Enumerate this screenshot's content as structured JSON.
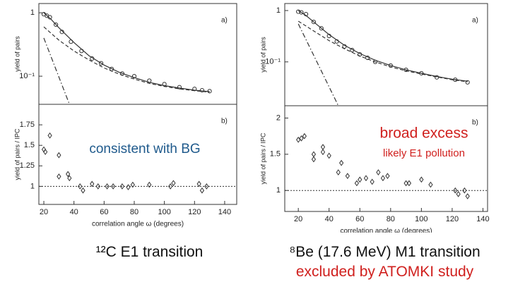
{
  "chart_data": [
    {
      "type": "scatter",
      "panel": "a)",
      "ylabel": "yield of pairs",
      "log": true,
      "xlim": [
        16.7,
        148
      ],
      "ylim": [
        0.036,
        1.4
      ],
      "yticks": [
        1,
        {
          "value": 0.1,
          "label": "10⁻¹"
        }
      ],
      "series": [
        {
          "style": "markers",
          "marker": "circle",
          "color": "#333",
          "x": [
            20,
            22,
            24,
            28,
            32,
            38,
            45,
            52,
            58,
            65,
            72,
            80,
            90,
            100,
            110,
            120,
            125,
            130
          ],
          "values": [
            0.95,
            0.9,
            0.85,
            0.65,
            0.5,
            0.35,
            0.25,
            0.19,
            0.16,
            0.13,
            0.11,
            0.1,
            0.085,
            0.075,
            0.067,
            0.063,
            0.06,
            0.058
          ]
        },
        {
          "style": "solid",
          "color": "#333",
          "x": [
            20,
            25,
            30,
            40,
            50,
            60,
            70,
            80,
            90,
            100,
            110,
            120,
            130
          ],
          "values": [
            1.0,
            0.78,
            0.58,
            0.34,
            0.21,
            0.15,
            0.115,
            0.095,
            0.08,
            0.071,
            0.065,
            0.06,
            0.057
          ]
        },
        {
          "style": "dashed",
          "color": "#333",
          "x": [
            20,
            25,
            30,
            40,
            50,
            60,
            70,
            80,
            90,
            100,
            110,
            120,
            130
          ],
          "values": [
            0.6,
            0.47,
            0.37,
            0.25,
            0.18,
            0.135,
            0.108,
            0.09,
            0.077,
            0.069,
            0.063,
            0.059,
            0.056
          ]
        },
        {
          "style": "dashdot",
          "color": "#333",
          "x": [
            20,
            37
          ],
          "values": [
            0.4,
            0.036
          ]
        }
      ]
    },
    {
      "type": "scatter",
      "panel": "b)",
      "ylabel": "yield of pairs / IPC",
      "log": false,
      "xlabel": "correlation angle ω (degrees)",
      "xlim": [
        16.7,
        148
      ],
      "ylim": [
        0.78,
        2.0
      ],
      "xticks": [
        20,
        40,
        60,
        80,
        100,
        120,
        140
      ],
      "yticks": [
        1,
        1.25,
        1.5,
        1.75
      ],
      "hline": 1,
      "annotations": [
        {
          "text": "consistent with BG",
          "color": "#1f5a8c"
        }
      ],
      "series": [
        {
          "style": "markers",
          "marker": "diamond",
          "color": "#333",
          "x": [
            20,
            21,
            24,
            30,
            30,
            36,
            37,
            44,
            46,
            52,
            56,
            62,
            66,
            72,
            76,
            79,
            90,
            104,
            106,
            123,
            125,
            128
          ],
          "values": [
            1.45,
            1.42,
            1.62,
            1.38,
            1.12,
            1.15,
            1.1,
            1.0,
            0.95,
            1.03,
            1.0,
            1.0,
            1.0,
            1.0,
            0.99,
            1.02,
            1.02,
            1.0,
            1.04,
            1.03,
            0.95,
            1.0
          ]
        }
      ]
    },
    {
      "type": "scatter",
      "panel": "a)",
      "ylabel": "yield of pairs",
      "log": true,
      "xlim": [
        11.2,
        143
      ],
      "ylim": [
        0.014,
        1.37
      ],
      "yticks": [
        1,
        {
          "value": 0.1,
          "label": "10⁻¹"
        }
      ],
      "series": [
        {
          "style": "markers",
          "marker": "circle",
          "color": "#333",
          "x": [
            20,
            22,
            25,
            30,
            35,
            40,
            45,
            50,
            55,
            60,
            65,
            70,
            80,
            90,
            100,
            110,
            122,
            130
          ],
          "values": [
            0.95,
            0.92,
            0.85,
            0.6,
            0.45,
            0.32,
            0.25,
            0.2,
            0.17,
            0.14,
            0.12,
            0.1,
            0.085,
            0.07,
            0.06,
            0.05,
            0.045,
            0.04
          ]
        },
        {
          "style": "solid",
          "color": "#333",
          "x": [
            20,
            25,
            30,
            40,
            50,
            60,
            70,
            80,
            90,
            100,
            110,
            120,
            130
          ],
          "values": [
            1.0,
            0.8,
            0.6,
            0.34,
            0.21,
            0.145,
            0.108,
            0.085,
            0.07,
            0.06,
            0.052,
            0.046,
            0.042
          ]
        },
        {
          "style": "dashed",
          "color": "#333",
          "x": [
            20,
            25,
            30,
            40,
            50,
            60,
            70,
            80,
            90,
            100,
            110,
            120,
            130
          ],
          "values": [
            0.62,
            0.5,
            0.4,
            0.26,
            0.18,
            0.13,
            0.1,
            0.08,
            0.067,
            0.058,
            0.051,
            0.045,
            0.041
          ]
        },
        {
          "style": "dashdot",
          "color": "#333",
          "x": [
            20,
            46
          ],
          "values": [
            0.55,
            0.014
          ]
        }
      ]
    },
    {
      "type": "scatter",
      "panel": "b)",
      "ylabel": "yield of pairs / IPC",
      "log": false,
      "xlabel": "correlation angle ω (degrees)",
      "xlim": [
        11.2,
        143
      ],
      "ylim": [
        0.71,
        2.17
      ],
      "xticks": [
        20,
        40,
        60,
        80,
        100,
        120,
        140
      ],
      "yticks": [
        1,
        1.5,
        2
      ],
      "hline": 1,
      "annotations": [
        {
          "text": "broad excess",
          "color": "#d0201e"
        },
        {
          "text": "likely E1 pollution",
          "color": "#d0201e"
        }
      ],
      "series": [
        {
          "style": "markers",
          "marker": "diamond",
          "color": "#333",
          "x": [
            20,
            22,
            24,
            30,
            30,
            36,
            36,
            40,
            46,
            48,
            52,
            58,
            60,
            64,
            68,
            72,
            75,
            78,
            90,
            92,
            100,
            106,
            122,
            124,
            128,
            130
          ],
          "values": [
            1.7,
            1.72,
            1.75,
            1.43,
            1.5,
            1.6,
            1.53,
            1.48,
            1.25,
            1.38,
            1.2,
            1.1,
            1.15,
            1.17,
            1.12,
            1.25,
            1.17,
            1.2,
            1.1,
            1.1,
            1.15,
            1.08,
            1.0,
            0.95,
            1.0,
            0.92
          ]
        }
      ]
    }
  ],
  "captions": {
    "left": "¹²C E1 transition",
    "right_1": "⁸Be (17.6 MeV) M1 transition",
    "right_2": "excluded by ATOMKI study"
  }
}
